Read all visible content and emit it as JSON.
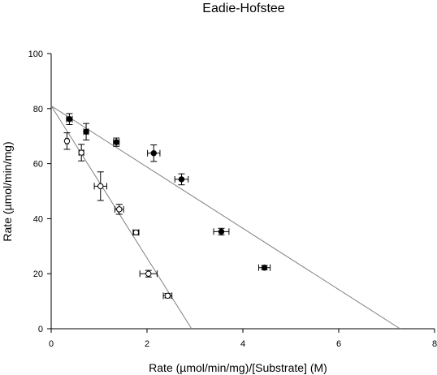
{
  "chart_data": {
    "type": "scatter",
    "title": "Eadie-Hofstee",
    "xlabel": "Rate (µmol/min/mg)/[Substrate] (M)",
    "ylabel": "Rate (µmol/min/mg)",
    "xlim": [
      0,
      8
    ],
    "ylim": [
      0,
      100
    ],
    "x_ticks": [
      "0",
      "2",
      "4",
      "6",
      "8"
    ],
    "y_ticks": [
      "0",
      "20",
      "40",
      "60",
      "80",
      "100"
    ],
    "grid": false,
    "legend": "none",
    "series": [
      {
        "marker": "filled-circle",
        "color": "#000000",
        "points": [
          {
            "x": 0.38,
            "y": 76.2,
            "xerr": 0.06,
            "yerr": 2.0
          },
          {
            "x": 0.73,
            "y": 71.6,
            "xerr": 0.05,
            "yerr": 3.0
          },
          {
            "x": 1.36,
            "y": 67.8,
            "xerr": 0.06,
            "yerr": 1.5
          },
          {
            "x": 2.14,
            "y": 63.8,
            "xerr": 0.13,
            "yerr": 3.0
          },
          {
            "x": 2.72,
            "y": 54.3,
            "xerr": 0.14,
            "yerr": 2.0
          },
          {
            "x": 3.55,
            "y": 35.3,
            "xerr": 0.16,
            "yerr": 1.2
          },
          {
            "x": 4.45,
            "y": 22.2,
            "xerr": 0.12,
            "yerr": 0.8
          }
        ],
        "fit": {
          "x0": 0,
          "y0": 81.0,
          "x1": 7.28,
          "y1": 0
        }
      },
      {
        "marker": "open-circle",
        "color": "#000000",
        "points": [
          {
            "x": 0.33,
            "y": 68.2,
            "xerr": 0.03,
            "yerr": 3.0
          },
          {
            "x": 0.63,
            "y": 64.0,
            "xerr": 0.05,
            "yerr": 3.0
          },
          {
            "x": 1.03,
            "y": 51.8,
            "xerr": 0.13,
            "yerr": 5.2
          },
          {
            "x": 1.42,
            "y": 43.4,
            "xerr": 0.09,
            "yerr": 1.8
          },
          {
            "x": 1.77,
            "y": 35.0,
            "xerr": 0.06,
            "yerr": 0.8
          },
          {
            "x": 2.03,
            "y": 20.0,
            "xerr": 0.18,
            "yerr": 1.2
          },
          {
            "x": 2.43,
            "y": 12.0,
            "xerr": 0.09,
            "yerr": 0.8
          }
        ],
        "fit": {
          "x0": 0,
          "y0": 81.0,
          "x1": 2.93,
          "y1": 0
        }
      }
    ]
  }
}
